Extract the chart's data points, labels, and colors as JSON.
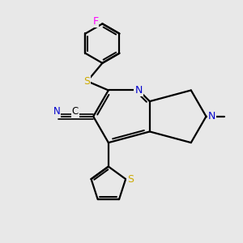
{
  "background_color": "#e8e8e8",
  "bond_color": "#000000",
  "bond_width": 1.6,
  "colors": {
    "N": "#0000cc",
    "S": "#ccaa00",
    "F": "#ff00ff",
    "C": "#000000"
  },
  "figsize": [
    3.0,
    3.0
  ],
  "dpi": 100,
  "xlim": [
    -3.2,
    2.8
  ],
  "ylim": [
    -3.0,
    2.8
  ]
}
